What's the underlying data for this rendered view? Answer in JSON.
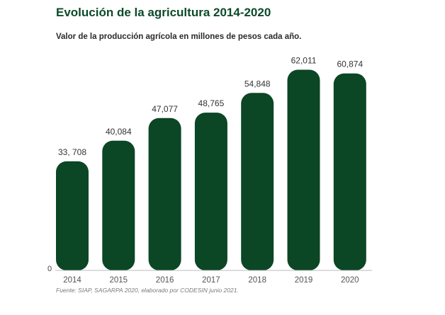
{
  "header": {
    "title": "Evolución de la agricultura 2014-2020",
    "subtitle": "Valor de la producción agrícola en millones de pesos cada año."
  },
  "chart_data": {
    "type": "bar",
    "title": "Evolución de la agricultura 2014-2020",
    "subtitle": "Valor de la producción agrícola en millones de pesos cada año.",
    "categories": [
      "2014",
      "2015",
      "2016",
      "2017",
      "2018",
      "2019",
      "2020"
    ],
    "values": [
      33708,
      40084,
      47077,
      48765,
      54848,
      62011,
      60874
    ],
    "data_labels": [
      "33, 708",
      "40,084",
      "47,077",
      "48,765",
      "54,848",
      "62,011",
      "60,874"
    ],
    "y_axis_tick": "0",
    "xlabel": "",
    "ylabel": "",
    "ylim": [
      0,
      63000
    ],
    "bar_color": "#0b4625"
  },
  "footer": {
    "source": "Fuente: SIAP, SAGARPA  2020,  elaborado por CODESIN junio 2021."
  }
}
